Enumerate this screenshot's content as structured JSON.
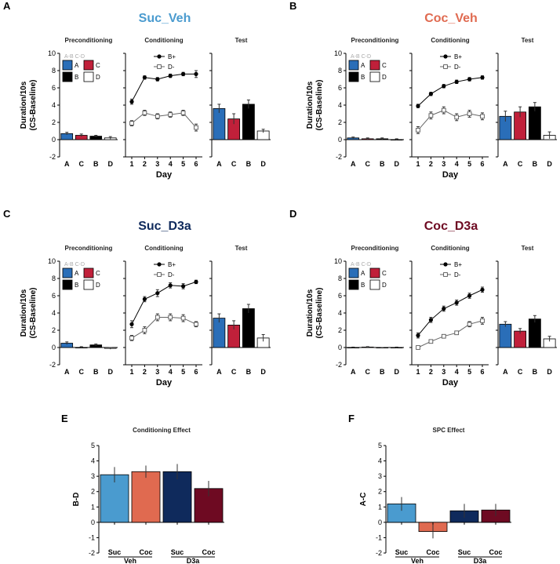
{
  "colors": {
    "A": "#2a6eb8",
    "C": "#c0203a",
    "B": "#000000",
    "D": "#ffffff",
    "Suc_Veh": "#4a9bcf",
    "Coc_Veh": "#e06a50",
    "Suc_D3a": "#0f2a5c",
    "Coc_D3a": "#6e0a22"
  },
  "chart_data": [
    {
      "id": "A",
      "panel_label": "A",
      "title": "Suc_Veh",
      "title_color": "#4a9bcf",
      "ylabel": "Duration/10s\n(CS-Baseline)",
      "ylim": [
        -2,
        10
      ],
      "yticks": [
        -2,
        0,
        2,
        4,
        6,
        8,
        10
      ],
      "preconditioning": {
        "title": "Preconditioning",
        "type": "bar",
        "categories": [
          "A",
          "C",
          "B",
          "D"
        ],
        "values": [
          0.7,
          0.5,
          0.4,
          0.2
        ],
        "errors": [
          0.15,
          0.15,
          0.1,
          0.15
        ],
        "legend_header": "A-B C-D",
        "legend": [
          "A",
          "C",
          "B",
          "D"
        ]
      },
      "conditioning": {
        "title": "Conditioning",
        "type": "line",
        "xlabel": "Day",
        "x": [
          1,
          2,
          3,
          4,
          5,
          6
        ],
        "series": [
          {
            "name": "B+",
            "marker": "filled",
            "values": [
              4.4,
              7.2,
              7.0,
              7.4,
              7.6,
              7.6
            ],
            "errors": [
              0.3,
              0.2,
              0.2,
              0.2,
              0.2,
              0.4
            ]
          },
          {
            "name": "D-",
            "marker": "open",
            "values": [
              1.9,
              3.1,
              2.7,
              2.9,
              3.1,
              1.4
            ],
            "errors": [
              0.3,
              0.3,
              0.3,
              0.3,
              0.3,
              0.4
            ]
          }
        ]
      },
      "test": {
        "title": "Test",
        "type": "bar",
        "categories": [
          "A",
          "C",
          "B",
          "D"
        ],
        "values": [
          3.6,
          2.4,
          4.1,
          1.0
        ],
        "errors": [
          0.5,
          0.6,
          0.5,
          0.2
        ]
      }
    },
    {
      "id": "B",
      "panel_label": "B",
      "title": "Coc_Veh",
      "title_color": "#e06a50",
      "ylabel": "Duration/10s\n(CS-Baseline)",
      "ylim": [
        -2,
        10
      ],
      "yticks": [
        -2,
        0,
        2,
        4,
        6,
        8,
        10
      ],
      "preconditioning": {
        "title": "Preconditioning",
        "type": "bar",
        "categories": [
          "A",
          "C",
          "B",
          "D"
        ],
        "values": [
          0.2,
          0.1,
          0.1,
          0.0
        ],
        "errors": [
          0.1,
          0.1,
          0.1,
          0.1
        ],
        "legend_header": "A-B C-D",
        "legend": [
          "A",
          "C",
          "B",
          "D"
        ]
      },
      "conditioning": {
        "title": "Conditioning",
        "type": "line",
        "xlabel": "Day",
        "x": [
          1,
          2,
          3,
          4,
          5,
          6
        ],
        "series": [
          {
            "name": "B+",
            "marker": "filled",
            "values": [
              3.9,
              5.3,
              6.2,
              6.7,
              7.0,
              7.2
            ],
            "errors": [
              0.2,
              0.2,
              0.2,
              0.2,
              0.2,
              0.2
            ]
          },
          {
            "name": "D-",
            "marker": "open",
            "values": [
              1.1,
              2.8,
              3.4,
              2.6,
              3.0,
              2.7
            ],
            "errors": [
              0.4,
              0.4,
              0.4,
              0.4,
              0.4,
              0.4
            ]
          }
        ]
      },
      "test": {
        "title": "Test",
        "type": "bar",
        "categories": [
          "A",
          "C",
          "B",
          "D"
        ],
        "values": [
          2.7,
          3.2,
          3.8,
          0.5
        ],
        "errors": [
          0.6,
          0.6,
          0.5,
          0.4
        ]
      }
    },
    {
      "id": "C",
      "panel_label": "C",
      "title": "Suc_D3a",
      "title_color": "#0f2a5c",
      "ylabel": "Duration/10s\n(CS-Baseline)",
      "ylim": [
        -2,
        10
      ],
      "yticks": [
        -2,
        0,
        2,
        4,
        6,
        8,
        10
      ],
      "preconditioning": {
        "title": "Preconditioning",
        "type": "bar",
        "categories": [
          "A",
          "C",
          "B",
          "D"
        ],
        "values": [
          0.5,
          0.0,
          0.3,
          -0.1
        ],
        "errors": [
          0.15,
          0.1,
          0.1,
          0.1
        ],
        "legend_header": "A-B C-D",
        "legend": [
          "A",
          "C",
          "B",
          "D"
        ]
      },
      "conditioning": {
        "title": "Conditioning",
        "type": "line",
        "xlabel": "Day",
        "x": [
          1,
          2,
          3,
          4,
          5,
          6
        ],
        "series": [
          {
            "name": "B+",
            "marker": "filled",
            "values": [
              2.7,
              5.6,
              6.3,
              7.2,
              7.1,
              7.6
            ],
            "errors": [
              0.4,
              0.3,
              0.4,
              0.3,
              0.3,
              0.2
            ]
          },
          {
            "name": "D-",
            "marker": "open",
            "values": [
              1.1,
              2.0,
              3.5,
              3.5,
              3.4,
              2.7
            ],
            "errors": [
              0.3,
              0.4,
              0.4,
              0.4,
              0.4,
              0.3
            ]
          }
        ]
      },
      "test": {
        "title": "Test",
        "type": "bar",
        "categories": [
          "A",
          "C",
          "B",
          "D"
        ],
        "values": [
          3.4,
          2.6,
          4.5,
          1.1
        ],
        "errors": [
          0.5,
          0.5,
          0.5,
          0.4
        ]
      }
    },
    {
      "id": "D",
      "panel_label": "D",
      "title": "Coc_D3a",
      "title_color": "#6e0a22",
      "ylabel": "Duration/10s\n(CS-Baseline)",
      "ylim": [
        -2,
        10
      ],
      "yticks": [
        -2,
        0,
        2,
        4,
        6,
        8,
        10
      ],
      "preconditioning": {
        "title": "Preconditioning",
        "type": "bar",
        "categories": [
          "A",
          "C",
          "B",
          "D"
        ],
        "values": [
          0.0,
          0.05,
          -0.05,
          0.0
        ],
        "errors": [
          0.05,
          0.05,
          0.05,
          0.05
        ],
        "legend_header": "A-B C-D",
        "legend": [
          "A",
          "C",
          "B",
          "D"
        ]
      },
      "conditioning": {
        "title": "Conditioning",
        "type": "line",
        "xlabel": "Day",
        "x": [
          1,
          2,
          3,
          4,
          5,
          6
        ],
        "series": [
          {
            "name": "B+",
            "marker": "filled",
            "values": [
              1.4,
              3.2,
              4.5,
              5.2,
              6.0,
              6.7
            ],
            "errors": [
              0.3,
              0.3,
              0.3,
              0.3,
              0.3,
              0.3
            ]
          },
          {
            "name": "D-",
            "marker": "open",
            "values": [
              0.0,
              0.7,
              1.3,
              1.7,
              2.7,
              3.1
            ],
            "errors": [
              0.1,
              0.2,
              0.2,
              0.2,
              0.3,
              0.4
            ]
          }
        ]
      },
      "test": {
        "title": "Test",
        "type": "bar",
        "categories": [
          "A",
          "C",
          "B",
          "D"
        ],
        "values": [
          2.7,
          1.9,
          3.3,
          1.0
        ],
        "errors": [
          0.3,
          0.3,
          0.4,
          0.3
        ]
      }
    },
    {
      "id": "E",
      "panel_label": "E",
      "type": "bar",
      "title": "Conditioning Effect",
      "ylabel": "B-D",
      "ylim": [
        -2,
        5
      ],
      "yticks": [
        -2,
        -1,
        0,
        1,
        2,
        3,
        4,
        5
      ],
      "categories": [
        "Suc",
        "Coc",
        "Suc",
        "Coc"
      ],
      "groups": [
        "Veh",
        "D3a"
      ],
      "bar_colors": [
        "#4a9bcf",
        "#e06a50",
        "#0f2a5c",
        "#6e0a22"
      ],
      "values": [
        3.1,
        3.3,
        3.3,
        2.2
      ],
      "errors": [
        0.5,
        0.4,
        0.5,
        0.5
      ]
    },
    {
      "id": "F",
      "panel_label": "F",
      "type": "bar",
      "title": "SPC Effect",
      "ylabel": "A-C",
      "ylim": [
        -2,
        5
      ],
      "yticks": [
        -2,
        -1,
        0,
        1,
        2,
        3,
        4,
        5
      ],
      "categories": [
        "Suc",
        "Coc",
        "Suc",
        "Coc"
      ],
      "groups": [
        "Veh",
        "D3a"
      ],
      "bar_colors": [
        "#4a9bcf",
        "#e06a50",
        "#0f2a5c",
        "#6e0a22"
      ],
      "values": [
        1.2,
        -0.6,
        0.75,
        0.8
      ],
      "errors": [
        0.45,
        0.45,
        0.45,
        0.4
      ]
    }
  ]
}
